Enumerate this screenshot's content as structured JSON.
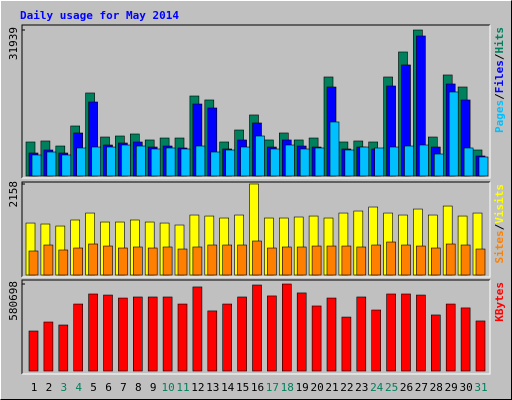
{
  "chart_data": {
    "type": "bar",
    "title": "Daily usage for May 2014",
    "title_color": "#0000ff",
    "legend_separator": "/",
    "categories": [
      "1",
      "2",
      "3",
      "4",
      "5",
      "6",
      "7",
      "8",
      "9",
      "10",
      "11",
      "12",
      "13",
      "14",
      "15",
      "16",
      "17",
      "18",
      "19",
      "20",
      "21",
      "22",
      "23",
      "24",
      "25",
      "26",
      "27",
      "28",
      "29",
      "30",
      "31"
    ],
    "label_colors": [
      "#000000",
      "#000000",
      "#00805c",
      "#00805c",
      "#000000",
      "#000000",
      "#000000",
      "#000000",
      "#000000",
      "#00805c",
      "#00805c",
      "#000000",
      "#000000",
      "#000000",
      "#000000",
      "#000000",
      "#00805c",
      "#00805c",
      "#000000",
      "#000000",
      "#000000",
      "#000000",
      "#000000",
      "#00805c",
      "#00805c",
      "#000000",
      "#000000",
      "#000000",
      "#000000",
      "#000000",
      "#00805c"
    ],
    "panels": [
      {
        "ylim": [
          0,
          31939
        ],
        "yticks": [
          31939
        ],
        "series": [
          {
            "name": "Hits",
            "color": "#00805c",
            "values": [
              7440,
              7660,
              6560,
              10940,
              18160,
              8530,
              8750,
              9190,
              7880,
              8310,
              8310,
              17500,
              16630,
              7440,
              10060,
              13350,
              7880,
              9410,
              7880,
              8310,
              21660,
              7440,
              7660,
              7440,
              21660,
              27130,
              31939,
              8530,
              22100,
              19470,
              5690
            ]
          },
          {
            "name": "Files",
            "color": "#0000ff",
            "values": [
              5030,
              5690,
              5030,
              9410,
              16190,
              6780,
              7220,
              7440,
              6340,
              6560,
              6130,
              15750,
              14880,
              5910,
              7880,
              11600,
              6340,
              7880,
              6560,
              6340,
              19470,
              5910,
              6340,
              5910,
              19690,
              24290,
              30630,
              6340,
              20130,
              16630,
              4380
            ]
          },
          {
            "name": "Pages",
            "color": "#00c0ff",
            "values": [
              4600,
              5250,
              4600,
              6130,
              6340,
              6340,
              6780,
              6560,
              5910,
              6130,
              5910,
              6560,
              5250,
              5690,
              6340,
              8750,
              5910,
              6780,
              5910,
              6130,
              11820,
              5690,
              6340,
              6130,
              6340,
              6560,
              6780,
              4810,
              18380,
              6130,
              4160
            ]
          }
        ]
      },
      {
        "ylim": [
          0,
          2158
        ],
        "yticks": [
          2158
        ],
        "series": [
          {
            "name": "Visits",
            "color": "#ffff00",
            "values": [
              1232,
              1209,
              1161,
              1304,
              1469,
              1256,
              1256,
              1304,
              1256,
              1232,
              1185,
              1422,
              1398,
              1351,
              1422,
              2158,
              1351,
              1351,
              1375,
              1398,
              1351,
              1469,
              1517,
              1612,
              1469,
              1422,
              1564,
              1422,
              1635,
              1398,
              1469
            ]
          },
          {
            "name": "Sites",
            "color": "#ff8000",
            "values": [
              569,
              711,
              593,
              640,
              735,
              687,
              640,
              664,
              640,
              664,
              616,
              664,
              711,
              711,
              711,
              806,
              640,
              664,
              664,
              687,
              687,
              687,
              664,
              711,
              782,
              711,
              687,
              640,
              735,
              711,
              616
            ]
          }
        ]
      },
      {
        "ylim": [
          0,
          580698
        ],
        "yticks": [
          580698
        ],
        "series": [
          {
            "name": "KBytes",
            "color": "#ff0000",
            "values": [
              267000,
              327000,
              307000,
              447000,
              514000,
              507000,
              487000,
              494000,
              494000,
              494000,
              447000,
              561000,
              401000,
              447000,
              494000,
              574000,
              501000,
              580698,
              521000,
              434000,
              487000,
              360000,
              494000,
              407000,
              514000,
              514000,
              507000,
              374000,
              447000,
              421000,
              334000
            ]
          }
        ]
      }
    ]
  }
}
